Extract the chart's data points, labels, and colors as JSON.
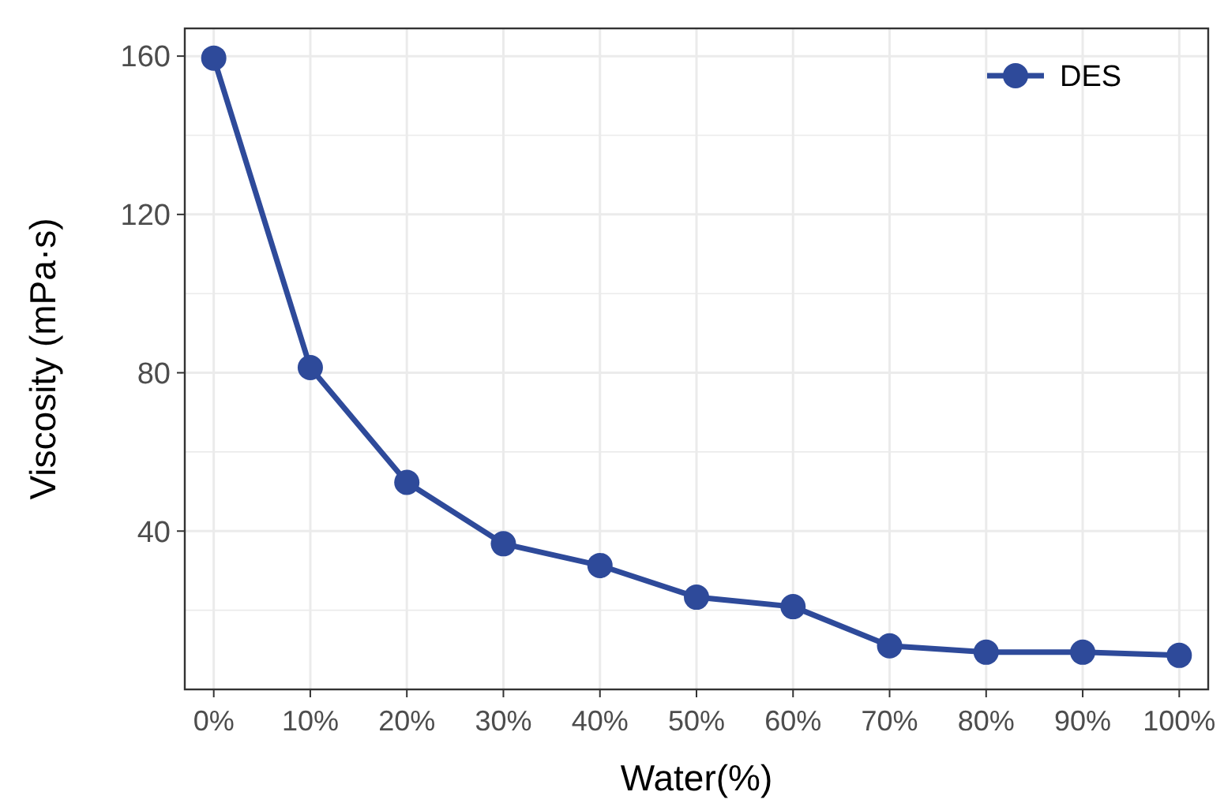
{
  "chart_data": {
    "type": "line",
    "xlabel": "Water(%)",
    "ylabel": "Viscosity (mPa·s)",
    "categories": [
      "0%",
      "10%",
      "20%",
      "30%",
      "40%",
      "50%",
      "60%",
      "70%",
      "80%",
      "90%",
      "100%"
    ],
    "series": [
      {
        "name": "DES",
        "color": "#2e4a9a",
        "values": [
          159.5,
          81.3,
          52.3,
          36.8,
          31.3,
          23.3,
          20.9,
          11.0,
          9.4,
          9.4,
          8.6
        ]
      }
    ],
    "ylim": [
      0,
      167
    ],
    "yticks": [
      {
        "value": 20,
        "label": null
      },
      40,
      {
        "value": 60,
        "label": null
      },
      80,
      {
        "value": 100,
        "label": null
      },
      120,
      {
        "value": 140,
        "label": null
      },
      160
    ],
    "grid": true,
    "legend": "top right",
    "marker": "circle",
    "line_style": "solid"
  }
}
